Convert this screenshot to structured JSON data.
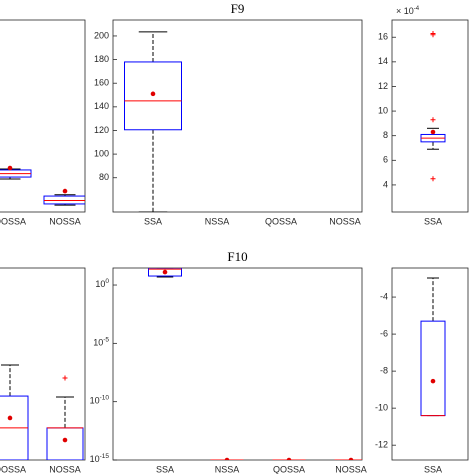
{
  "chart_data": [
    {
      "type": "box",
      "categories": [
        "QOSSA",
        "NOSSA"
      ],
      "ylim": [
        0,
        100
      ],
      "yticks": [],
      "boxes": [
        {
          "whislo": 17.2,
          "q1": 18.2,
          "med": 20,
          "q3": 21.9,
          "whishi": 22.4,
          "mean": 22.9,
          "fliers": []
        },
        {
          "whislo": 3.6,
          "q1": 4.2,
          "med": 6,
          "q3": 8.3,
          "whishi": 9,
          "mean": 10.9,
          "fliers": []
        }
      ]
    },
    {
      "type": "box",
      "title": "F9",
      "categories": [
        "SSA",
        "NSSA",
        "QOSSA",
        "NOSSA"
      ],
      "ylim": [
        51,
        213.5
      ],
      "yticks": [
        80,
        100,
        120,
        140,
        160,
        180,
        200
      ],
      "boxes": [
        {
          "whislo": 51,
          "q1": 120.6,
          "med": 145,
          "q3": 178,
          "whishi": 203.4,
          "mean": 151,
          "fliers": []
        },
        null,
        null,
        null
      ]
    },
    {
      "type": "box",
      "categories": [
        "SSA"
      ],
      "ylim": [
        1.8,
        17.4
      ],
      "yticks": [
        4,
        6,
        8,
        10,
        12,
        14,
        16
      ],
      "offset_base": "× 10",
      "offset_exp": "-4",
      "boxes": [
        {
          "whislo": 6.9,
          "q1": 7.5,
          "med": 7.8,
          "q3": 8.1,
          "whishi": 8.6,
          "mean": 8.3,
          "fliers": [
            16.3,
            16.2,
            9.3,
            4.5
          ]
        }
      ]
    },
    {
      "type": "box",
      "categories": [
        "QOSSA",
        "NOSSA"
      ],
      "ylim": [
        0,
        100
      ],
      "yticks": [],
      "boxes": [
        {
          "whislo": 0,
          "q1": 0,
          "med": 16.7,
          "q3": 33.3,
          "whishi": 49.5,
          "mean": 21.9,
          "fliers": []
        },
        {
          "whislo": 0,
          "q1": 0,
          "med": 16.7,
          "q3": 16.7,
          "whishi": 32.8,
          "mean": 10.4,
          "fliers": [
            42.7
          ]
        }
      ]
    },
    {
      "type": "box",
      "title": "F10",
      "log_y": true,
      "categories": [
        "SSA",
        "NSSA",
        "QOSSA",
        "NOSSA"
      ],
      "ylim": [
        1e-15,
        28.8
      ],
      "yticks": [
        {
          "value": 1,
          "label": "10",
          "exponent": "0"
        },
        {
          "value": 1e-05,
          "label": "10",
          "exponent": "-5"
        },
        {
          "value": 1e-10,
          "label": "10",
          "exponent": "-10"
        },
        {
          "value": 1e-15,
          "label": "10",
          "exponent": "-15"
        }
      ],
      "boxes": [
        {
          "whislo": 4.9,
          "q1": 5.9,
          "med": 23,
          "q3": 30,
          "whishi": 30,
          "mean": 12.9,
          "fliers": []
        },
        {
          "whislo": 1e-15,
          "q1": 1e-15,
          "med": 1e-15,
          "q3": 1e-15,
          "whishi": 1e-15,
          "mean": 1e-15,
          "fliers": []
        },
        {
          "whislo": 1e-15,
          "q1": 1e-15,
          "med": 1e-15,
          "q3": 1e-15,
          "whishi": 1e-15,
          "mean": 1e-15,
          "fliers": []
        },
        {
          "whislo": 1e-15,
          "q1": 1e-15,
          "med": 1e-15,
          "q3": 1e-15,
          "whishi": 1e-15,
          "mean": 1e-15,
          "fliers": []
        }
      ]
    },
    {
      "type": "box",
      "categories": [
        "SSA"
      ],
      "ylim": [
        -12.8,
        -2.43
      ],
      "yticks": [
        -4,
        -6,
        -8,
        -10,
        -12
      ],
      "boxes": [
        {
          "whislo": -10.4,
          "q1": -10.4,
          "med": -10.4,
          "q3": -5.3,
          "whishi": -2.97,
          "mean": -8.54,
          "fliers": []
        }
      ]
    }
  ]
}
